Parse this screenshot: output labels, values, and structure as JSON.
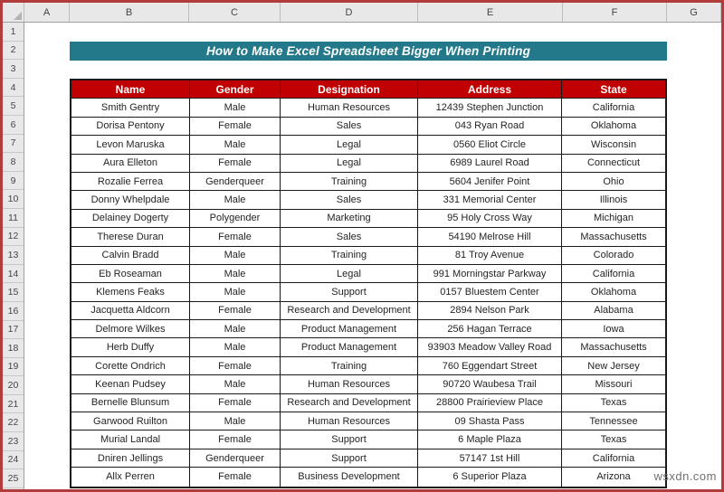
{
  "frame": {
    "border_color": "#b23b3b"
  },
  "spreadsheet": {
    "column_letters": [
      "A",
      "B",
      "C",
      "D",
      "E",
      "F",
      "G"
    ],
    "row_numbers": [
      "1",
      "2",
      "3",
      "4",
      "5",
      "6",
      "7",
      "8",
      "9",
      "10",
      "11",
      "12",
      "13",
      "14",
      "15",
      "16",
      "17",
      "18",
      "19",
      "20",
      "21",
      "22",
      "23",
      "24",
      "25"
    ]
  },
  "banner": {
    "text": "How to Make Excel Spreadsheet Bigger When Printing",
    "bg_color": "#23798a",
    "text_color": "#ffffff"
  },
  "table": {
    "header_bg": "#c00000",
    "header_text_color": "#ffffff",
    "border_color": "#1a1a1a",
    "columns": [
      "Name",
      "Gender",
      "Designation",
      "Address",
      "State"
    ],
    "rows": [
      [
        "Smith Gentry",
        "Male",
        "Human Resources",
        "12439 Stephen Junction",
        "California"
      ],
      [
        "Dorisa Pentony",
        "Female",
        "Sales",
        "043 Ryan Road",
        "Oklahoma"
      ],
      [
        "Levon Maruska",
        "Male",
        "Legal",
        "0560 Eliot Circle",
        "Wisconsin"
      ],
      [
        "Aura Elleton",
        "Female",
        "Legal",
        "6989 Laurel Road",
        "Connecticut"
      ],
      [
        "Rozalie Ferrea",
        "Genderqueer",
        "Training",
        "5604 Jenifer Point",
        "Ohio"
      ],
      [
        "Donny Whelpdale",
        "Male",
        "Sales",
        "331 Memorial Center",
        "Illinois"
      ],
      [
        "Delainey Dogerty",
        "Polygender",
        "Marketing",
        "95 Holy Cross Way",
        "Michigan"
      ],
      [
        "Therese Duran",
        "Female",
        "Sales",
        "54190 Melrose Hill",
        "Massachusetts"
      ],
      [
        "Calvin Bradd",
        "Male",
        "Training",
        "81 Troy Avenue",
        "Colorado"
      ],
      [
        "Eb Roseaman",
        "Male",
        "Legal",
        "991 Morningstar Parkway",
        "California"
      ],
      [
        "Klemens Feaks",
        "Male",
        "Support",
        "0157 Bluestem Center",
        "Oklahoma"
      ],
      [
        "Jacquetta Aldcorn",
        "Female",
        "Research and Development",
        "2894 Nelson Park",
        "Alabama"
      ],
      [
        "Delmore Wilkes",
        "Male",
        "Product Management",
        "256 Hagan Terrace",
        "Iowa"
      ],
      [
        "Herb Duffy",
        "Male",
        "Product Management",
        "93903 Meadow Valley Road",
        "Massachusetts"
      ],
      [
        "Corette Ondrich",
        "Female",
        "Training",
        "760 Eggendart Street",
        "New Jersey"
      ],
      [
        "Keenan Pudsey",
        "Male",
        "Human Resources",
        "90720 Waubesa Trail",
        "Missouri"
      ],
      [
        "Bernelle Blunsum",
        "Female",
        "Research and Development",
        "28800 Prairieview Place",
        "Texas"
      ],
      [
        "Garwood Ruilton",
        "Male",
        "Human Resources",
        "09 Shasta Pass",
        "Tennessee"
      ],
      [
        "Murial Landal",
        "Female",
        "Support",
        "6 Maple Plaza",
        "Texas"
      ],
      [
        "Dniren Jellings",
        "Genderqueer",
        "Support",
        "57147 1st Hill",
        "California"
      ],
      [
        "Allx Perren",
        "Female",
        "Business Development",
        "6 Superior Plaza",
        "Arizona"
      ]
    ]
  },
  "watermark": {
    "text": "wsxdn.com",
    "color": "#707070"
  }
}
